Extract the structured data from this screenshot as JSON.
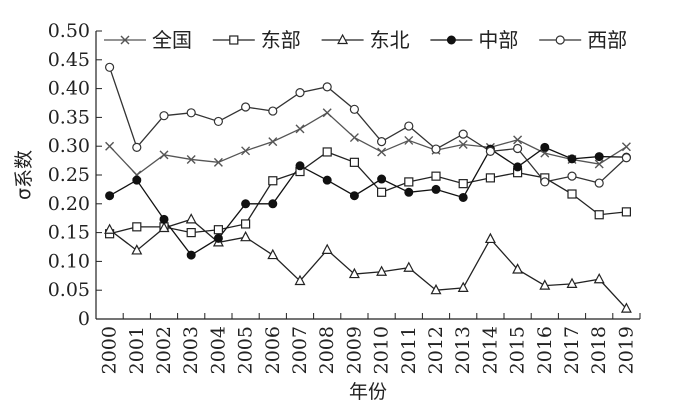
{
  "chart_data": {
    "type": "line",
    "xlabel": "年份",
    "ylabel": "σ系数",
    "ylim": [
      0,
      0.5
    ],
    "y_ticks": [
      "0",
      "0.05",
      "0.10",
      "0.15",
      "0.20",
      "0.25",
      "0.30",
      "0.35",
      "0.40",
      "0.45",
      "0.50"
    ],
    "y_tick_values": [
      0,
      0.05,
      0.1,
      0.15,
      0.2,
      0.25,
      0.3,
      0.35,
      0.4,
      0.45,
      0.5
    ],
    "categories": [
      "2000",
      "2001",
      "2002",
      "2003",
      "2004",
      "2005",
      "2006",
      "2007",
      "2008",
      "2009",
      "2010",
      "2011",
      "2012",
      "2013",
      "2014",
      "2015",
      "2016",
      "2017",
      "2018",
      "2019"
    ],
    "legend_position": "top",
    "grid": false,
    "series": [
      {
        "name": "全国",
        "marker": "x",
        "color": "#555555",
        "values": [
          0.3,
          0.25,
          0.285,
          0.277,
          0.272,
          0.292,
          0.308,
          0.33,
          0.358,
          0.315,
          0.29,
          0.31,
          0.293,
          0.303,
          0.298,
          0.311,
          0.288,
          0.277,
          0.269,
          0.299
        ]
      },
      {
        "name": "东部",
        "marker": "square-open",
        "color": "#222222",
        "values": [
          0.148,
          0.16,
          0.16,
          0.15,
          0.155,
          0.165,
          0.24,
          0.256,
          0.29,
          0.272,
          0.22,
          0.238,
          0.248,
          0.235,
          0.245,
          0.254,
          0.245,
          0.217,
          0.181,
          0.186
        ]
      },
      {
        "name": "东北",
        "marker": "triangle-open",
        "color": "#222222",
        "values": [
          0.155,
          0.119,
          0.158,
          0.173,
          0.133,
          0.142,
          0.111,
          0.066,
          0.12,
          0.078,
          0.082,
          0.089,
          0.05,
          0.054,
          0.139,
          0.086,
          0.058,
          0.061,
          0.069,
          0.018
        ]
      },
      {
        "name": "中部",
        "marker": "circle-filled",
        "color": "#111111",
        "values": [
          0.214,
          0.241,
          0.173,
          0.111,
          0.14,
          0.2,
          0.2,
          0.266,
          0.241,
          0.214,
          0.243,
          0.22,
          0.225,
          0.211,
          0.295,
          0.264,
          0.298,
          0.278,
          0.282,
          0.281
        ]
      },
      {
        "name": "西部",
        "marker": "circle-open",
        "color": "#333333",
        "values": [
          0.437,
          0.298,
          0.353,
          0.358,
          0.343,
          0.368,
          0.361,
          0.393,
          0.403,
          0.364,
          0.308,
          0.335,
          0.295,
          0.321,
          0.291,
          0.296,
          0.238,
          0.248,
          0.236,
          0.28
        ]
      }
    ]
  }
}
